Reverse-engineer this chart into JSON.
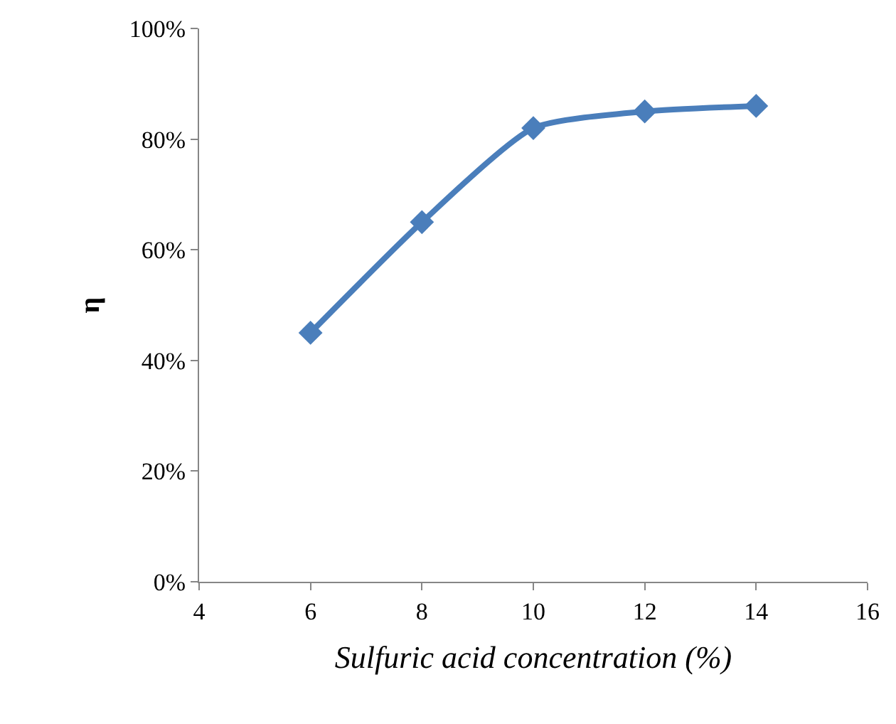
{
  "chart_data": {
    "type": "line",
    "xlabel": "Sulfuric acid concentration (%)",
    "ylabel": "η",
    "x": [
      6,
      8,
      10,
      12,
      14
    ],
    "series": [
      {
        "color": "#4a7ebb",
        "values": [
          45,
          65,
          82,
          85,
          86
        ]
      }
    ],
    "xlim": [
      4,
      16
    ],
    "xticks": [
      4,
      6,
      8,
      10,
      12,
      14,
      16
    ],
    "ylim": [
      0,
      100
    ],
    "yticks": [
      {
        "value": 0,
        "label": "0%"
      },
      {
        "value": 20,
        "label": "20%"
      },
      {
        "value": 40,
        "label": "40%"
      },
      {
        "value": 60,
        "label": "60%"
      },
      {
        "value": 80,
        "label": "80%"
      },
      {
        "value": 100,
        "label": "100%"
      }
    ],
    "legend": false,
    "marker": "diamond",
    "line_style": "solid"
  }
}
